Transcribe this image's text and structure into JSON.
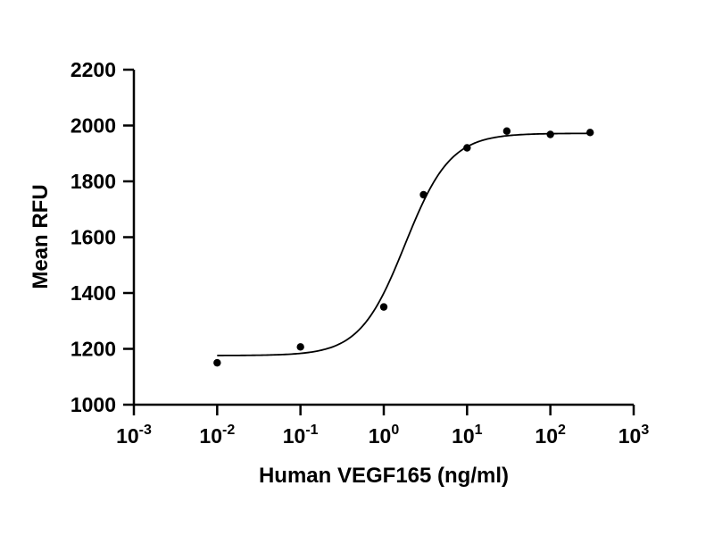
{
  "chart_data": {
    "type": "scatter",
    "xlabel": "Human VEGF165 (ng/ml)",
    "ylabel": "Mean RFU",
    "xscale": "log10",
    "xlim": [
      0.001,
      1000
    ],
    "ylim": [
      1000,
      2200
    ],
    "x_ticks": [
      {
        "value": 0.001,
        "base": "10",
        "exp": "-3"
      },
      {
        "value": 0.01,
        "base": "10",
        "exp": "-2"
      },
      {
        "value": 0.1,
        "base": "10",
        "exp": "-1"
      },
      {
        "value": 1,
        "base": "10",
        "exp": "0"
      },
      {
        "value": 10,
        "base": "10",
        "exp": "1"
      },
      {
        "value": 100,
        "base": "10",
        "exp": "2"
      },
      {
        "value": 1000,
        "base": "10",
        "exp": "3"
      }
    ],
    "y_ticks": [
      1000,
      1200,
      1400,
      1600,
      1800,
      2000,
      2200
    ],
    "points": [
      {
        "x": 0.01,
        "y": 1150
      },
      {
        "x": 0.1,
        "y": 1207
      },
      {
        "x": 1,
        "y": 1350
      },
      {
        "x": 3,
        "y": 1752
      },
      {
        "x": 10,
        "y": 1920
      },
      {
        "x": 30,
        "y": 1980
      },
      {
        "x": 100,
        "y": 1968
      },
      {
        "x": 300,
        "y": 1975
      }
    ],
    "fit": {
      "model": "four-parameter logistic",
      "bottom": 1176,
      "top": 1972,
      "ec50": 1.8,
      "hill": 1.6
    },
    "grid": false,
    "legend": "none"
  }
}
